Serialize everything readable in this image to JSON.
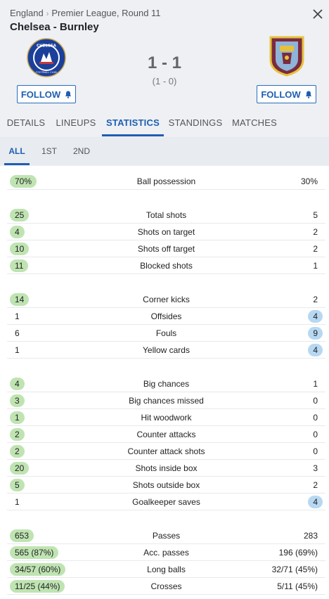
{
  "breadcrumb": {
    "country": "England",
    "sep": "›",
    "competition": "Premier League, Round 11"
  },
  "match": {
    "title": "Chelsea - Burnley",
    "score": "1 - 1",
    "halftime": "(1 - 0)"
  },
  "home": {
    "name": "Chelsea",
    "follow_label": "FOLLOW",
    "crest_text": "CHELSEA",
    "crest_sub": "FOOTBALL CLUB"
  },
  "away": {
    "name": "Burnley",
    "follow_label": "FOLLOW"
  },
  "tabs": [
    {
      "label": "DETAILS"
    },
    {
      "label": "LINEUPS"
    },
    {
      "label": "STATISTICS"
    },
    {
      "label": "STANDINGS"
    },
    {
      "label": "MATCHES"
    }
  ],
  "subtabs": [
    {
      "label": "ALL"
    },
    {
      "label": "1ST"
    },
    {
      "label": "2ND"
    }
  ],
  "colors": {
    "accent": "#1e5fb0",
    "home_highlight": "#bfe4b2",
    "away_highlight": "#b7d8f2"
  },
  "stats": [
    {
      "label": "Ball possession",
      "home": "70%",
      "away": "30%",
      "lead": "home"
    },
    {
      "label": "Total shots",
      "home": "25",
      "away": "5",
      "lead": "home"
    },
    {
      "label": "Shots on target",
      "home": "4",
      "away": "2",
      "lead": "home"
    },
    {
      "label": "Shots off target",
      "home": "10",
      "away": "2",
      "lead": "home"
    },
    {
      "label": "Blocked shots",
      "home": "11",
      "away": "1",
      "lead": "home"
    },
    {
      "label": "Corner kicks",
      "home": "14",
      "away": "2",
      "lead": "home"
    },
    {
      "label": "Offsides",
      "home": "1",
      "away": "4",
      "lead": "away"
    },
    {
      "label": "Fouls",
      "home": "6",
      "away": "9",
      "lead": "away"
    },
    {
      "label": "Yellow cards",
      "home": "1",
      "away": "4",
      "lead": "away"
    },
    {
      "label": "Big chances",
      "home": "4",
      "away": "1",
      "lead": "home"
    },
    {
      "label": "Big chances missed",
      "home": "3",
      "away": "0",
      "lead": "home"
    },
    {
      "label": "Hit woodwork",
      "home": "1",
      "away": "0",
      "lead": "home"
    },
    {
      "label": "Counter attacks",
      "home": "2",
      "away": "0",
      "lead": "home"
    },
    {
      "label": "Counter attack shots",
      "home": "2",
      "away": "0",
      "lead": "home"
    },
    {
      "label": "Shots inside box",
      "home": "20",
      "away": "3",
      "lead": "home"
    },
    {
      "label": "Shots outside box",
      "home": "5",
      "away": "2",
      "lead": "home"
    },
    {
      "label": "Goalkeeper saves",
      "home": "1",
      "away": "4",
      "lead": "away"
    },
    {
      "label": "Passes",
      "home": "653",
      "away": "283",
      "lead": "home"
    },
    {
      "label": "Acc. passes",
      "home": "565 (87%)",
      "away": "196 (69%)",
      "lead": "home"
    },
    {
      "label": "Long balls",
      "home": "34/57 (60%)",
      "away": "32/71 (45%)",
      "lead": "home"
    },
    {
      "label": "Crosses",
      "home": "11/25 (44%)",
      "away": "5/11 (45%)",
      "lead": "home"
    }
  ]
}
